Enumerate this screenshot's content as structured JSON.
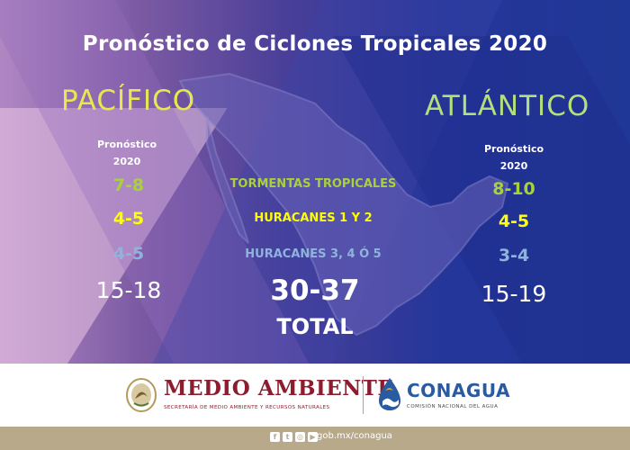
{
  "title": "Pronóstico de Ciclones Tropicales 2020",
  "pacifico": {
    "name": "PACÍFICO",
    "forecast_label_line1": "Pronóstico",
    "forecast_label_line2": "2020",
    "tormentas": "7-8",
    "huracanes_1_2": "4-5",
    "huracanes_3_4_5": "4-5",
    "total": "15-18"
  },
  "atlantico": {
    "name": "ATLÁNTICO",
    "forecast_label_line1": "Pronóstico",
    "forecast_label_line2": "2020",
    "tormentas": "8-10",
    "huracanes_1_2": "4-5",
    "huracanes_3_4_5": "3-4",
    "total": "15-19"
  },
  "categories": {
    "tormentas": "TORMENTAS TROPICALES",
    "huracanes_1_2": "HURACANES 1 Y 2",
    "huracanes_3_4_5": "HURACANES 3, 4 Ó 5"
  },
  "total": {
    "value": "30-37",
    "label": "TOTAL"
  },
  "footer": {
    "medio_ambiente": "MEDIO AMBIENTE",
    "medio_ambiente_sub": "SECRETARÍA DE MEDIO AMBIENTE Y RECURSOS NATURALES",
    "conagua": "CONAGUA",
    "conagua_sub": "COMISIÓN NACIONAL DEL AGUA",
    "url": "gob.mx/conagua",
    "social_icons": [
      "facebook-icon",
      "twitter-icon",
      "instagram-icon",
      "youtube-icon"
    ]
  },
  "colors": {
    "green": "#a9d13a",
    "yellow": "#ffff00",
    "blue": "#8fb4dc",
    "medio_ambiente_red": "#8c1d2f",
    "conagua_blue": "#2a5aa0",
    "bottom_bar": "#b8a98a"
  }
}
